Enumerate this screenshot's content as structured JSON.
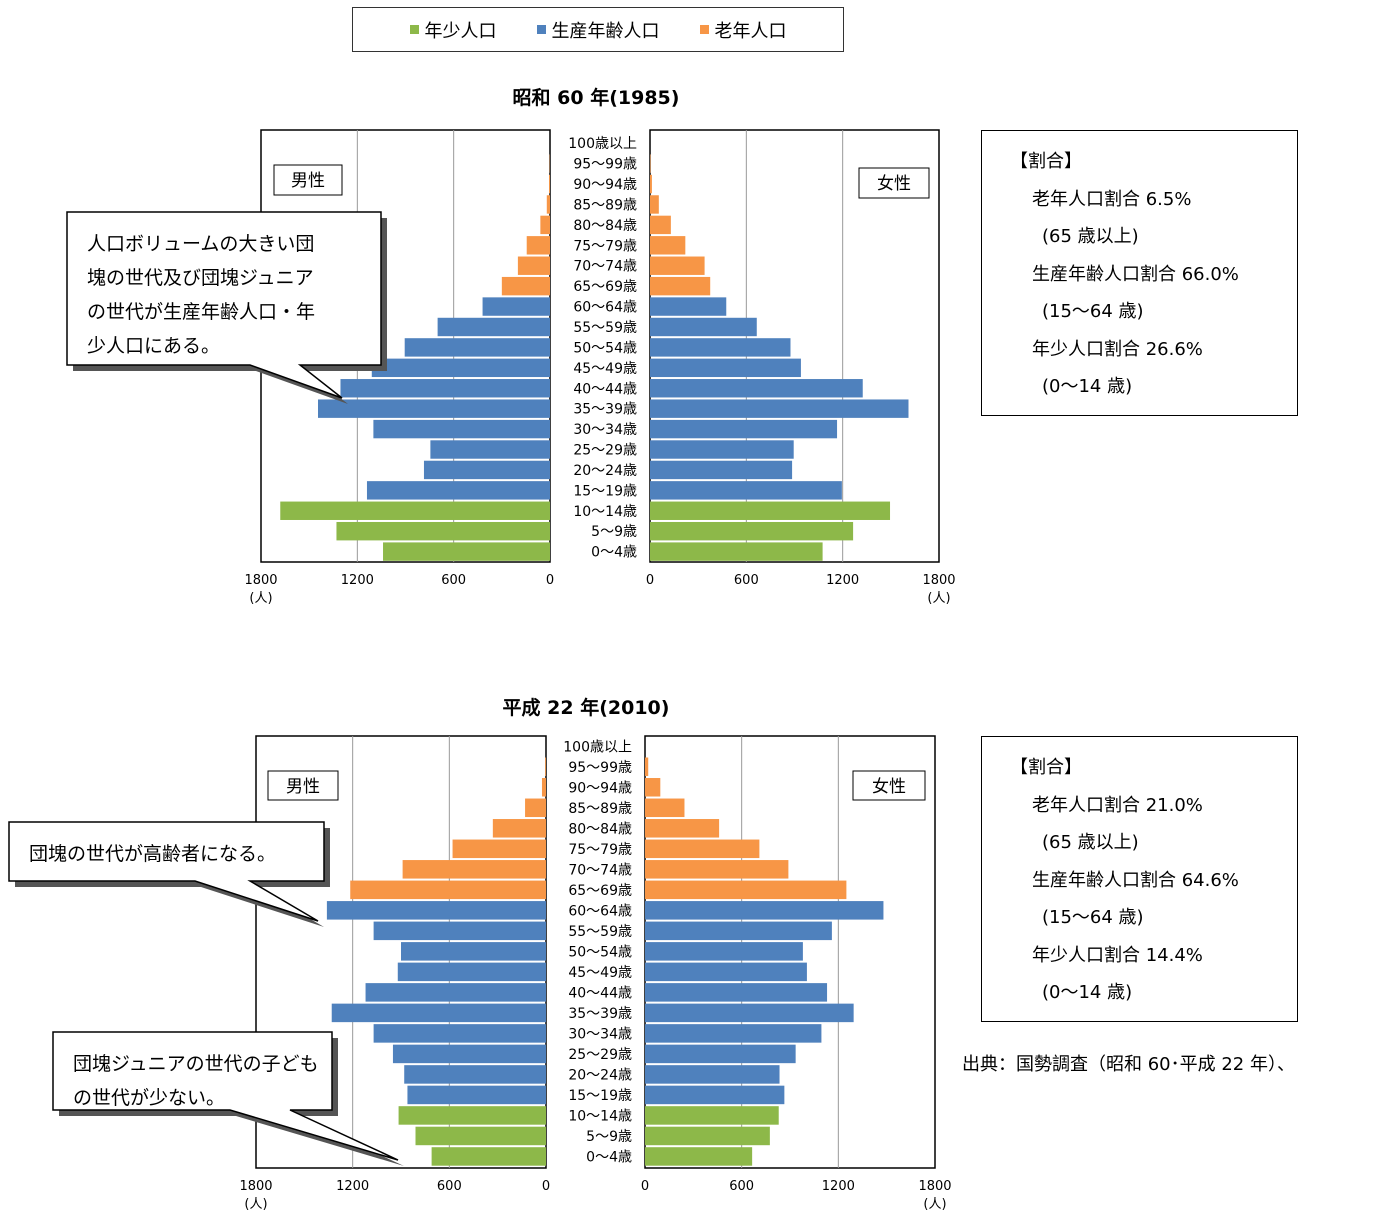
{
  "legend": {
    "items": [
      {
        "label": "年少人口",
        "color": "#8DB849"
      },
      {
        "label": "生産年齢人口",
        "color": "#4F81BD"
      },
      {
        "label": "老年人口",
        "color": "#F79646"
      }
    ]
  },
  "colors": {
    "young": "#8DB849",
    "working": "#4F81BD",
    "old": "#F79646"
  },
  "chart_data": [
    {
      "type": "bar",
      "title": "昭和 60 年(1985)",
      "left_label": "男性",
      "right_label": "女性",
      "categories": [
        "100歳以上",
        "95〜99歳",
        "90〜94歳",
        "85〜89歳",
        "80〜84歳",
        "75〜79歳",
        "70〜74歳",
        "65〜69歳",
        "60〜64歳",
        "55〜59歳",
        "50〜54歳",
        "45〜49歳",
        "40〜44歳",
        "35〜39歳",
        "30〜34歳",
        "25〜29歳",
        "20〜24歳",
        "15〜19歳",
        "10〜14歳",
        "5〜9歳",
        "0〜4歳"
      ],
      "groups": [
        "old",
        "old",
        "old",
        "old",
        "old",
        "old",
        "old",
        "old",
        "working",
        "working",
        "working",
        "working",
        "working",
        "working",
        "working",
        "working",
        "working",
        "working",
        "young",
        "young",
        "young"
      ],
      "series": [
        {
          "name": "男性",
          "values": [
            0,
            2,
            6,
            20,
            60,
            145,
            200,
            300,
            420,
            700,
            905,
            1110,
            1305,
            1445,
            1100,
            745,
            785,
            1140,
            1680,
            1330,
            1040
          ]
        },
        {
          "name": "女性",
          "values": [
            0,
            3,
            12,
            55,
            130,
            220,
            340,
            375,
            475,
            665,
            875,
            940,
            1325,
            1610,
            1165,
            895,
            885,
            1195,
            1495,
            1265,
            1075
          ]
        }
      ],
      "xlim": [
        0,
        1800
      ],
      "ticks_left": [
        "1800",
        "1200",
        "600",
        "0"
      ],
      "ticks_right": [
        "0",
        "600",
        "1200",
        "1800"
      ],
      "unit": "(人)",
      "annotation": "人口ボリュームの大きい団塊の世代及び団塊ジュニアの世代が生産年齢人口・年少人口にある。",
      "ratios": {
        "heading": "【割合】",
        "lines": [
          {
            "text": "老年人口割合 6.5%",
            "indent": 1
          },
          {
            "text": "(65 歳以上)",
            "indent": 2
          },
          {
            "text": "生産年齢人口割合 66.0%",
            "indent": 1
          },
          {
            "text": "(15〜64 歳)",
            "indent": 2
          },
          {
            "text": "年少人口割合 26.6%",
            "indent": 1
          },
          {
            "text": "(0〜14 歳)",
            "indent": 2
          }
        ]
      }
    },
    {
      "type": "bar",
      "title": "平成 22 年(2010)",
      "left_label": "男性",
      "right_label": "女性",
      "categories": [
        "100歳以上",
        "95〜99歳",
        "90〜94歳",
        "85〜89歳",
        "80〜84歳",
        "75〜79歳",
        "70〜74歳",
        "65〜69歳",
        "60〜64歳",
        "55〜59歳",
        "50〜54歳",
        "45〜49歳",
        "40〜44歳",
        "35〜39歳",
        "30〜34歳",
        "25〜29歳",
        "20〜24歳",
        "15〜19歳",
        "10〜14歳",
        "5〜9歳",
        "0〜4歳"
      ],
      "groups": [
        "old",
        "old",
        "old",
        "old",
        "old",
        "old",
        "old",
        "old",
        "working",
        "working",
        "working",
        "working",
        "working",
        "working",
        "working",
        "working",
        "working",
        "working",
        "young",
        "young",
        "young"
      ],
      "series": [
        {
          "name": "男性",
          "values": [
            0,
            5,
            25,
            130,
            330,
            580,
            890,
            1215,
            1360,
            1070,
            900,
            920,
            1120,
            1330,
            1070,
            950,
            880,
            860,
            915,
            810,
            710
          ]
        },
        {
          "name": "女性",
          "values": [
            0,
            20,
            95,
            245,
            460,
            710,
            890,
            1250,
            1480,
            1160,
            980,
            1005,
            1130,
            1295,
            1095,
            935,
            835,
            865,
            830,
            775,
            665
          ]
        }
      ],
      "xlim": [
        0,
        1800
      ],
      "ticks_left": [
        "1800",
        "1200",
        "600",
        "0"
      ],
      "ticks_right": [
        "0",
        "600",
        "1200",
        "1800"
      ],
      "unit": "(人)",
      "annotations": [
        "団塊の世代が高齢者になる。",
        "団塊ジュニアの世代の子どもの世代が少ない。"
      ],
      "ratios": {
        "heading": "【割合】",
        "lines": [
          {
            "text": "老年人口割合 21.0%",
            "indent": 1
          },
          {
            "text": "(65 歳以上)",
            "indent": 2
          },
          {
            "text": "生産年齢人口割合 64.6%",
            "indent": 1
          },
          {
            "text": "(15〜64 歳)",
            "indent": 2
          },
          {
            "text": "年少人口割合 14.4%",
            "indent": 1
          },
          {
            "text": "(0〜14 歳)",
            "indent": 2
          }
        ]
      }
    }
  ],
  "source": "出典：国勢調査（昭和 60･平成 22 年）、"
}
